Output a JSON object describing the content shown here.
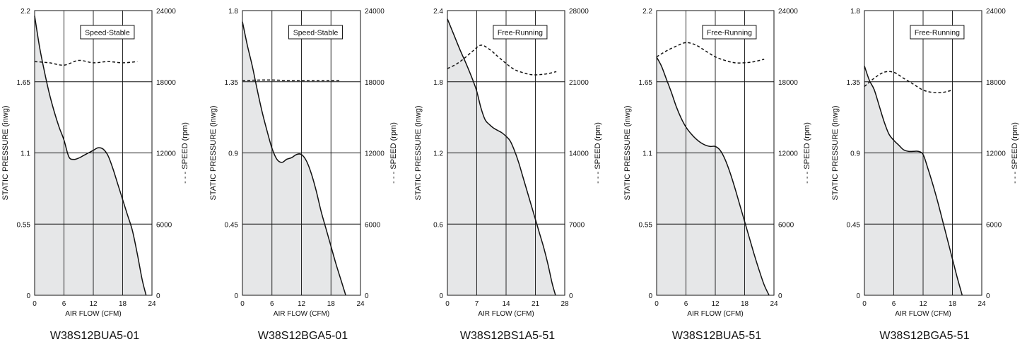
{
  "chart_data": [
    {
      "type": "area",
      "model": "W38S12BUA5-01",
      "mode": "Speed-Stable",
      "xlabel": "AIR FLOW (CFM)",
      "ylabel": "STATIC PRESSURE (inwg)",
      "y2label": "- - - SPEED (rpm)",
      "xticks": [
        0,
        6,
        12,
        18,
        24
      ],
      "xlim": [
        0,
        24
      ],
      "yticks": [
        "0",
        "0.55",
        "1.1",
        "1.65",
        "2.2"
      ],
      "ylim": [
        0,
        2.2
      ],
      "y2ticks": [
        "0",
        "6000",
        "12000",
        "18000",
        "24000"
      ],
      "y2lim": [
        0,
        24000
      ],
      "grid": true,
      "series": [
        {
          "role": "pressure",
          "style": "solid-filled",
          "x": [
            0,
            1,
            2,
            3,
            4,
            5,
            6,
            7,
            8,
            9,
            10,
            11,
            12,
            13,
            14,
            15,
            16,
            17,
            18,
            19,
            20,
            21,
            22,
            22.8
          ],
          "y": [
            2.16,
            1.92,
            1.73,
            1.56,
            1.42,
            1.3,
            1.2,
            1.07,
            1.05,
            1.06,
            1.08,
            1.1,
            1.12,
            1.14,
            1.13,
            1.08,
            0.98,
            0.86,
            0.74,
            0.62,
            0.5,
            0.32,
            0.12,
            0
          ]
        },
        {
          "role": "speed",
          "style": "dashed",
          "x": [
            0,
            3,
            6,
            9,
            12,
            15,
            18,
            21
          ],
          "y": [
            19700,
            19600,
            19400,
            19800,
            19600,
            19700,
            19600,
            19700
          ]
        }
      ]
    },
    {
      "type": "area",
      "model": "W38S12BGA5-01",
      "mode": "Speed-Stable",
      "xlabel": "AIR FLOW (CFM)",
      "ylabel": "STATIC PRESSURE (inwg)",
      "y2label": "- - - SPEED (rpm)",
      "xticks": [
        0,
        6,
        12,
        18,
        24
      ],
      "xlim": [
        0,
        24
      ],
      "yticks": [
        "0",
        "0.45",
        "0.9",
        "1.35",
        "1.8"
      ],
      "ylim": [
        0,
        1.8
      ],
      "y2ticks": [
        "0",
        "6000",
        "12000",
        "18000",
        "24000"
      ],
      "y2lim": [
        0,
        24000
      ],
      "grid": true,
      "series": [
        {
          "role": "pressure",
          "style": "solid-filled",
          "x": [
            0,
            1,
            2,
            3,
            4,
            5,
            6,
            7,
            8,
            9,
            10,
            11,
            12,
            13,
            14,
            15,
            16,
            17,
            18,
            19,
            20,
            21
          ],
          "y": [
            1.73,
            1.58,
            1.45,
            1.3,
            1.16,
            1.04,
            0.93,
            0.86,
            0.84,
            0.86,
            0.87,
            0.89,
            0.89,
            0.85,
            0.77,
            0.66,
            0.53,
            0.42,
            0.31,
            0.2,
            0.1,
            0
          ]
        },
        {
          "role": "speed",
          "style": "dashed",
          "x": [
            0,
            5,
            10,
            15,
            20
          ],
          "y": [
            18100,
            18150,
            18100,
            18100,
            18100
          ]
        }
      ]
    },
    {
      "type": "area",
      "model": "W38S12BS1A5-51",
      "mode": "Free-Running",
      "xlabel": "AIR FLOW (CFM)",
      "ylabel": "STATIC PRESSURE (inwg)",
      "y2label": "- - - SPEED (rpm)",
      "xticks": [
        0,
        7,
        14,
        21,
        28
      ],
      "xlim": [
        0,
        28
      ],
      "yticks": [
        "0",
        "0.6",
        "1.2",
        "1.8",
        "2.4"
      ],
      "ylim": [
        0,
        2.4
      ],
      "y2ticks": [
        "0",
        "7000",
        "14000",
        "21000",
        "28000"
      ],
      "y2lim": [
        0,
        28000
      ],
      "grid": true,
      "series": [
        {
          "role": "pressure",
          "style": "solid-filled",
          "x": [
            0,
            1.5,
            3,
            4.5,
            6,
            7,
            8,
            9,
            10,
            11,
            12,
            13,
            14,
            15,
            16,
            17,
            18,
            19,
            20,
            21,
            22,
            23,
            24,
            25,
            25.8
          ],
          "y": [
            2.33,
            2.2,
            2.07,
            1.95,
            1.82,
            1.72,
            1.58,
            1.48,
            1.44,
            1.41,
            1.39,
            1.37,
            1.34,
            1.3,
            1.22,
            1.12,
            1.0,
            0.88,
            0.76,
            0.64,
            0.52,
            0.4,
            0.26,
            0.1,
            0
          ]
        },
        {
          "role": "speed",
          "style": "dashed",
          "x": [
            0,
            2,
            4,
            6,
            8,
            10,
            12,
            14,
            16,
            18,
            20,
            22,
            24,
            26
          ],
          "y": [
            22300,
            22700,
            23300,
            24000,
            24600,
            24200,
            23500,
            22800,
            22200,
            21900,
            21700,
            21700,
            21800,
            22000
          ]
        }
      ]
    },
    {
      "type": "area",
      "model": "W38S12BUA5-51",
      "mode": "Free-Running",
      "xlabel": "AIR FLOW (CFM)",
      "ylabel": "STATIC PRESSURE (inwg)",
      "y2label": "- - - SPEED (rpm)",
      "xticks": [
        0,
        6,
        12,
        18,
        24
      ],
      "xlim": [
        0,
        24
      ],
      "yticks": [
        "0",
        "0.55",
        "1.1",
        "1.65",
        "2.2"
      ],
      "ylim": [
        0,
        2.2
      ],
      "y2ticks": [
        "0",
        "6000",
        "12000",
        "18000",
        "24000"
      ],
      "y2lim": [
        0,
        24000
      ],
      "grid": true,
      "series": [
        {
          "role": "pressure",
          "style": "solid-filled",
          "x": [
            0,
            1,
            2,
            3,
            4,
            5,
            6,
            7,
            8,
            9,
            10,
            11,
            12,
            13,
            14,
            15,
            16,
            17,
            18,
            19,
            20,
            21,
            22,
            23
          ],
          "y": [
            1.84,
            1.77,
            1.67,
            1.57,
            1.46,
            1.37,
            1.3,
            1.25,
            1.21,
            1.18,
            1.16,
            1.15,
            1.15,
            1.12,
            1.05,
            0.95,
            0.83,
            0.7,
            0.57,
            0.44,
            0.31,
            0.19,
            0.08,
            0
          ]
        },
        {
          "role": "speed",
          "style": "dashed",
          "x": [
            0,
            2,
            4,
            6,
            8,
            10,
            12,
            14,
            16,
            18,
            20,
            22
          ],
          "y": [
            20100,
            20600,
            21000,
            21300,
            21100,
            20600,
            20100,
            19800,
            19600,
            19600,
            19700,
            19900
          ]
        }
      ]
    },
    {
      "type": "area",
      "model": "W38S12BGA5-51",
      "mode": "Free-Running",
      "xlabel": "AIR FLOW (CFM)",
      "ylabel": "STATIC PRESSURE (inwg)",
      "y2label": "- - - SPEED (rpm)",
      "xticks": [
        0,
        6,
        12,
        18,
        24
      ],
      "xlim": [
        0,
        24
      ],
      "yticks": [
        "0",
        "0.45",
        "0.9",
        "1.35",
        "1.8"
      ],
      "ylim": [
        0,
        1.8
      ],
      "y2ticks": [
        "0",
        "6000",
        "12000",
        "18000",
        "24000"
      ],
      "y2lim": [
        0,
        24000
      ],
      "grid": true,
      "series": [
        {
          "role": "pressure",
          "style": "solid-filled",
          "x": [
            0,
            1,
            2,
            3,
            4,
            5,
            6,
            7,
            8,
            9,
            10,
            11,
            12,
            13,
            14,
            15,
            16,
            17,
            18,
            19,
            20
          ],
          "y": [
            1.45,
            1.36,
            1.3,
            1.2,
            1.1,
            1.02,
            0.98,
            0.95,
            0.92,
            0.91,
            0.91,
            0.91,
            0.89,
            0.8,
            0.7,
            0.59,
            0.47,
            0.35,
            0.23,
            0.11,
            0
          ]
        },
        {
          "role": "speed",
          "style": "dashed",
          "x": [
            0,
            2,
            4,
            6,
            8,
            10,
            12,
            14,
            16,
            18
          ],
          "y": [
            17600,
            18300,
            18800,
            18800,
            18300,
            17800,
            17300,
            17100,
            17100,
            17300
          ]
        }
      ]
    }
  ]
}
